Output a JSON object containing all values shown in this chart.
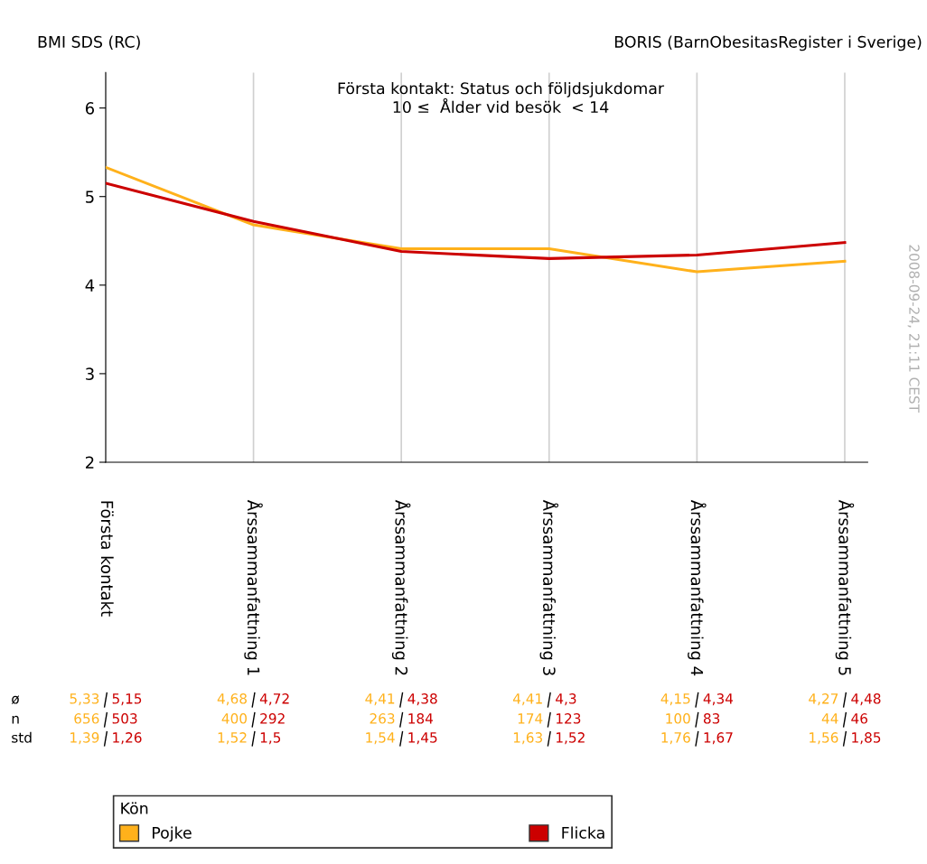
{
  "chart_data": {
    "type": "line",
    "title": "Första kontakt: Status och följdsjukdomar",
    "subtitle": "10 ≤  Ålder vid besök  < 14",
    "ylabel": "BMI SDS (RC)",
    "legend_title": "Kön",
    "categories": [
      "Första kontakt",
      "Årssammanfattning 1",
      "Årssammanfattning 2",
      "Årssammanfattning 3",
      "Årssammanfattning 4",
      "Årssammanfattning 5"
    ],
    "series": [
      {
        "name": "Pojke",
        "color": "#ffb11b",
        "values": [
          5.33,
          4.68,
          4.41,
          4.41,
          4.15,
          4.27
        ]
      },
      {
        "name": "Flicka",
        "color": "#cc0000",
        "values": [
          5.15,
          4.72,
          4.38,
          4.3,
          4.34,
          4.48
        ]
      }
    ],
    "ylim": [
      2,
      6.4
    ],
    "yticks": [
      2,
      3,
      4,
      5,
      6
    ],
    "grid": "x",
    "legend": "bottom",
    "marker": "none",
    "line_style": "solid",
    "annotations": [
      "2008-09-24, 21:11 CEST",
      "BORIS (BarnObesitasRegister i Sverige)",
      "ø",
      "n",
      "std",
      "5,33",
      "5,15",
      "4,68",
      "4,72",
      "4,41",
      "4,38",
      "4,41",
      "4,3",
      "4,15",
      "4,34",
      "4,27",
      "4,48",
      "656",
      "503",
      "400",
      "292",
      "263",
      "184",
      "174",
      "123",
      "100",
      "83",
      "44",
      "46",
      "1,39",
      "1,26",
      "1,52",
      "1,5",
      "1,54",
      "1,45",
      "1,63",
      "1,52",
      "1,76",
      "1,67",
      "1,56",
      "1,85"
    ]
  }
}
